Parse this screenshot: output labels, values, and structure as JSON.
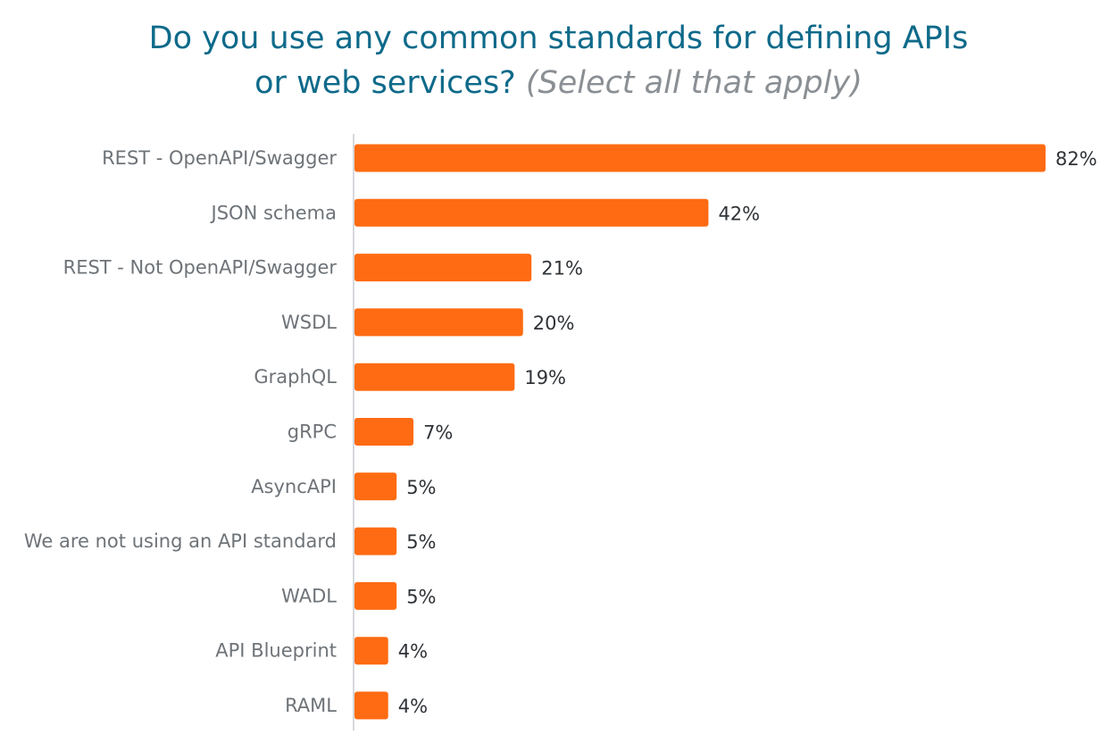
{
  "title": {
    "line1": "Do you use any common standards for defining APIs",
    "line2": "or web services?",
    "note": "(Select all that apply)"
  },
  "colors": {
    "bar": "#ff6b12",
    "title": "#0e6a8a",
    "note": "#8a8f94",
    "category_text": "#6e7378",
    "value_text": "#2f3337",
    "axis": "#c9cccf"
  },
  "chart_data": {
    "type": "bar",
    "orientation": "horizontal",
    "title": "Do you use any common standards for defining APIs or web services?",
    "subtitle": "(Select all that apply)",
    "xlabel": "",
    "ylabel": "",
    "categories": [
      "REST - OpenAPI/Swagger",
      "JSON schema",
      "REST - Not OpenAPI/Swagger",
      "WSDL",
      "GraphQL",
      "gRPC",
      "AsyncAPI",
      "We are not using an API standard",
      "WADL",
      "API Blueprint",
      "RAML"
    ],
    "values": [
      82,
      42,
      21,
      20,
      19,
      7,
      5,
      5,
      5,
      4,
      4
    ],
    "value_labels": [
      "82%",
      "42%",
      "21%",
      "20%",
      "19%",
      "7%",
      "5%",
      "5%",
      "5%",
      "4%",
      "4%"
    ],
    "xlim": [
      0,
      82
    ],
    "grid": false,
    "legend": "none"
  }
}
